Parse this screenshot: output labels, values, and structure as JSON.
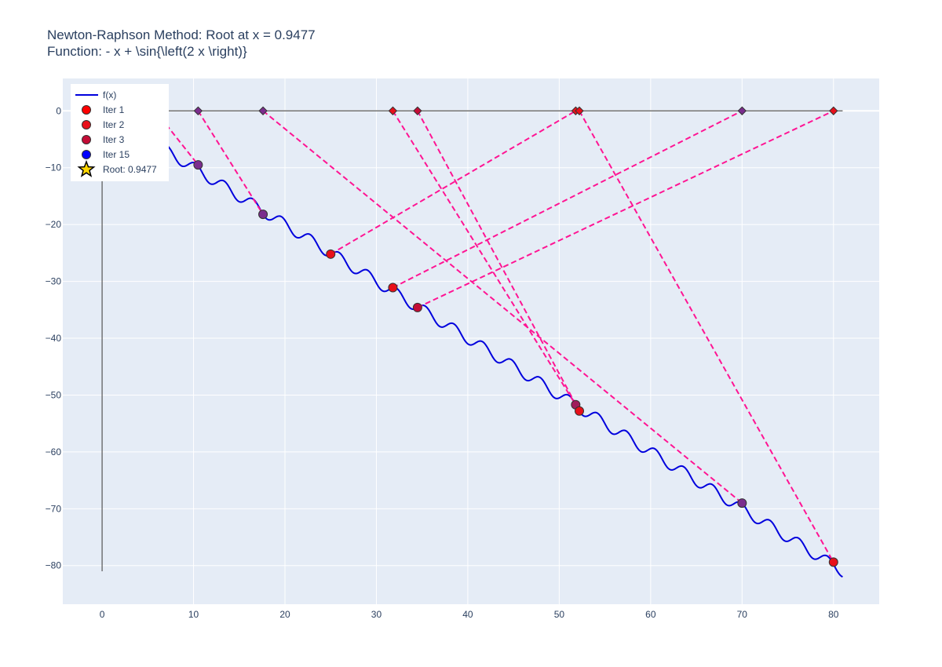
{
  "chart_data": {
    "type": "line",
    "title": "Newton-Raphson Method: Root at x = 0.9477",
    "subtitle": "Function: - x + \\sin{\\left(2 x \\right)}",
    "xlim": [
      -4.3,
      85.0
    ],
    "ylim": [
      -86.8,
      5.7
    ],
    "x_ticks": [
      0,
      10,
      20,
      30,
      40,
      50,
      60,
      70,
      80
    ],
    "y_ticks": [
      0,
      -10,
      -20,
      -30,
      -40,
      -50,
      -60,
      -70,
      -80
    ],
    "x_tick_labels": [
      "0",
      "10",
      "20",
      "30",
      "40",
      "50",
      "60",
      "70",
      "80"
    ],
    "y_tick_labels": [
      "0",
      "−10",
      "−20",
      "−30",
      "−40",
      "−50",
      "−60",
      "−70",
      "−80"
    ],
    "grid": true,
    "function": {
      "name": "f(x)",
      "color": "#0000dd",
      "x_range": [
        0,
        81
      ],
      "expression": "-x + sin(2x)"
    },
    "tangent_color": "#ff1493",
    "on_curve_points": [
      {
        "x": 10.5,
        "y": -9.5,
        "color": "#7b2d8e"
      },
      {
        "x": 17.6,
        "y": -18.2,
        "color": "#7b2d8e"
      },
      {
        "x": 25.0,
        "y": -25.2,
        "color": "#e8101a"
      },
      {
        "x": 31.8,
        "y": -31.1,
        "color": "#e8101a"
      },
      {
        "x": 34.5,
        "y": -34.6,
        "color": "#c40c36"
      },
      {
        "x": 51.8,
        "y": -51.7,
        "color": "#a01e5c"
      },
      {
        "x": 52.2,
        "y": -52.8,
        "color": "#e8101a"
      },
      {
        "x": 70.0,
        "y": -69.0,
        "color": "#7b2d8e"
      },
      {
        "x": 80.0,
        "y": -79.4,
        "color": "#e8101a"
      }
    ],
    "axis_points": [
      {
        "x": 10.5,
        "color": "#7b2d8e"
      },
      {
        "x": 17.6,
        "color": "#7b2d8e"
      },
      {
        "x": 31.8,
        "color": "#e8101a"
      },
      {
        "x": 34.5,
        "color": "#c40c36"
      },
      {
        "x": 51.8,
        "color": "#e8101a"
      },
      {
        "x": 52.2,
        "color": "#e8101a"
      },
      {
        "x": 70.0,
        "color": "#7b2d8e"
      },
      {
        "x": 80.0,
        "color": "#e8101a"
      }
    ],
    "tangent_lines": [
      {
        "x1": 7.0,
        "y1": -2.4,
        "x2": 10.5,
        "y2": -9.5
      },
      {
        "x1": 10.5,
        "y1": 0,
        "x2": 17.6,
        "y2": -18.2
      },
      {
        "x1": 17.6,
        "y1": 0,
        "x2": 70.0,
        "y2": -69.0
      },
      {
        "x1": 25.0,
        "y1": -25.2,
        "x2": 51.8,
        "y2": 0
      },
      {
        "x1": 31.8,
        "y1": 0,
        "x2": 51.8,
        "y2": -51.7
      },
      {
        "x1": 34.5,
        "y1": 0,
        "x2": 52.2,
        "y2": -52.8
      },
      {
        "x1": 52.2,
        "y1": 0,
        "x2": 80.0,
        "y2": -79.4
      },
      {
        "x1": 31.8,
        "y1": -31.1,
        "x2": 70.0,
        "y2": 0
      },
      {
        "x1": 34.5,
        "y1": -34.6,
        "x2": 80.0,
        "y2": 0
      }
    ],
    "legend": {
      "placement": "top-left",
      "items": [
        {
          "name": "f(x)",
          "kind": "line",
          "color": "#0000dd"
        },
        {
          "name": "Iter 1",
          "kind": "marker",
          "color": "#ff0000"
        },
        {
          "name": "Iter 2",
          "kind": "marker",
          "color": "#e8101a"
        },
        {
          "name": "Iter 3",
          "kind": "marker",
          "color": "#c40c36"
        },
        {
          "name": "Iter 15",
          "kind": "marker",
          "color": "#0000ff"
        },
        {
          "name": "Root: 0.9477",
          "kind": "star",
          "color": "#ffd700"
        }
      ]
    }
  }
}
